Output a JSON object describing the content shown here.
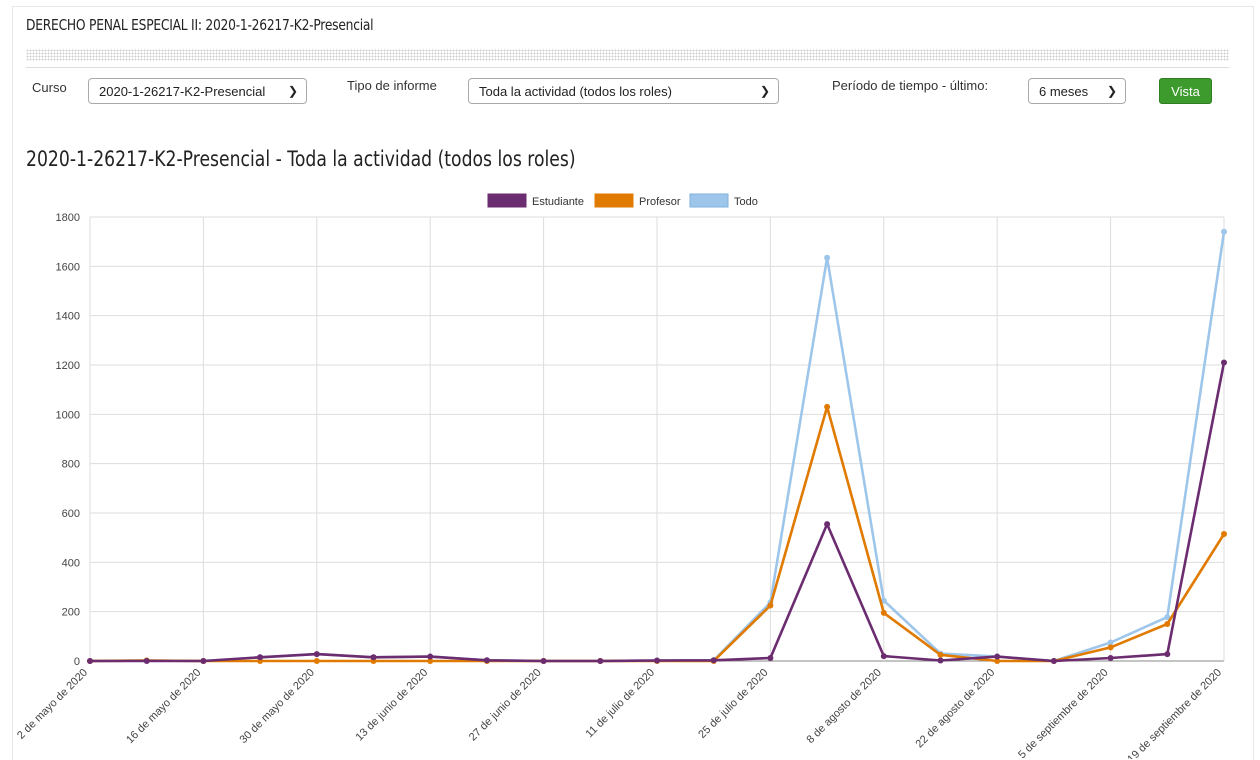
{
  "header": {
    "title": "DERECHO PENAL ESPECIAL II: 2020-1-26217-K2-Presencial"
  },
  "filters": {
    "course_label": "Curso",
    "course_value": "2020-1-26217-K2-Presencial",
    "report_label": "Tipo de informe",
    "report_value": "Toda la actividad (todos los roles)",
    "period_label": "Período de tiempo - último:",
    "period_value": "6 meses",
    "view_button": "Vista"
  },
  "colors": {
    "estudiante": "#6b2c70",
    "profesor": "#e07a00",
    "todo": "#9ec6ea",
    "button": "#3d9a2c"
  },
  "chart_data": {
    "type": "line",
    "title": "2020-1-26217-K2-Presencial - Toda la actividad (todos los roles)",
    "legend_position": "top",
    "grid": true,
    "ylim": [
      0,
      1800
    ],
    "yticks": [
      "0",
      "200",
      "400",
      "600",
      "800",
      "1000",
      "1200",
      "1400",
      "1600",
      "1800"
    ],
    "x_labels": [
      "2 de mayo de 2020",
      "16 de mayo de 2020",
      "30 de mayo de 2020",
      "13 de junio de 2020",
      "27 de junio de 2020",
      "11 de julio de 2020",
      "25 de julio de 2020",
      "8 de agosto de 2020",
      "22 de agosto de 2020",
      "5 de septiembre de 2020",
      "19 de septiembre de 2020"
    ],
    "x": [
      "2 de mayo de 2020",
      "9 de mayo de 2020",
      "16 de mayo de 2020",
      "23 de mayo de 2020",
      "30 de mayo de 2020",
      "6 de junio de 2020",
      "13 de junio de 2020",
      "20 de junio de 2020",
      "27 de junio de 2020",
      "4 de julio de 2020",
      "11 de julio de 2020",
      "18 de julio de 2020",
      "25 de julio de 2020",
      "1 de agosto de 2020",
      "8 de agosto de 2020",
      "15 de agosto de 2020",
      "22 de agosto de 2020",
      "29 de agosto de 2020",
      "5 de septiembre de 2020",
      "12 de septiembre de 2020",
      "19 de septiembre de 2020"
    ],
    "series": [
      {
        "name": "Estudiante",
        "color": "#6b2c70",
        "values": [
          0,
          0,
          0,
          15,
          28,
          15,
          18,
          3,
          0,
          0,
          2,
          3,
          12,
          555,
          20,
          2,
          18,
          0,
          12,
          28,
          1210
        ]
      },
      {
        "name": "Profesor",
        "color": "#e07a00",
        "values": [
          0,
          2,
          0,
          0,
          0,
          0,
          0,
          0,
          0,
          0,
          0,
          0,
          225,
          1030,
          195,
          25,
          0,
          0,
          55,
          150,
          515
        ]
      },
      {
        "name": "Todo",
        "color": "#9ec6ea",
        "values": [
          0,
          2,
          0,
          15,
          28,
          15,
          18,
          3,
          0,
          0,
          2,
          3,
          237,
          1635,
          245,
          30,
          18,
          0,
          75,
          178,
          1740
        ]
      }
    ]
  }
}
